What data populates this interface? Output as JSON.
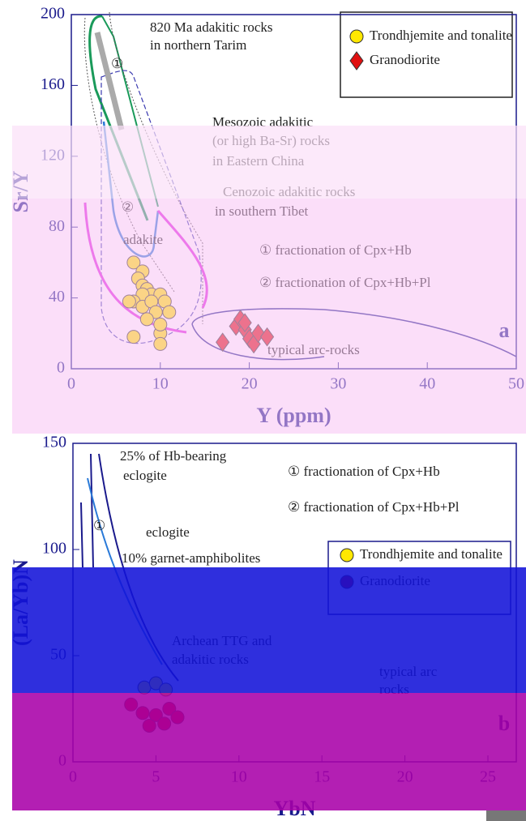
{
  "chart_data": [
    {
      "type": "scatter",
      "panel_label": "a",
      "x_label": "Y (ppm)",
      "y_label": "Sr/Y",
      "xlim": [
        0,
        50
      ],
      "ylim": [
        0,
        200
      ],
      "xticks": [
        0,
        10,
        20,
        30,
        40,
        50
      ],
      "yticks": [
        0,
        40,
        80,
        120,
        160,
        200
      ],
      "legend_position": "top-right",
      "series": [
        {
          "name": "Trondhjemite and tonalite",
          "color": "#ffe800",
          "marker": "circle",
          "x": [
            7,
            8,
            7.5,
            8,
            8.5,
            9,
            8,
            7,
            10,
            8,
            9,
            9.5,
            10.5,
            11,
            8.5,
            7,
            10,
            10,
            6.5,
            10
          ],
          "y": [
            60,
            55,
            51,
            47,
            45,
            42,
            42,
            38,
            42,
            35,
            38,
            32,
            38,
            32,
            28,
            18,
            20,
            14,
            38,
            25
          ]
        },
        {
          "name": "Granodiorite",
          "color": "#e01010",
          "marker": "diamond",
          "x": [
            17,
            18.5,
            19,
            19.5,
            20,
            20.5,
            21,
            22,
            19.5
          ],
          "y": [
            15,
            24,
            28,
            22,
            17,
            14,
            20,
            18,
            26
          ]
        }
      ],
      "annotations": [
        "820 Ma adakitic rocks",
        "in northern Tarim",
        "Mesozoic adakitic",
        "(or high Ba-Sr) rocks",
        "in Eastern China",
        "Cenozoic adakitic rocks",
        "in southern Tibet",
        "adakite",
        "① fractionation of Cpx+Hb",
        "② fractionation of Cpx+Hb+Pl",
        "typical arc-rocks",
        "①",
        "②"
      ]
    },
    {
      "type": "scatter",
      "panel_label": "b",
      "x_label": "YbN",
      "y_label": "(La/Yb)N",
      "xlim": [
        0,
        25
      ],
      "ylim": [
        0,
        150
      ],
      "xticks": [
        0,
        5,
        10,
        15,
        20,
        25
      ],
      "yticks": [
        0,
        50,
        100,
        150
      ],
      "legend_position": "top-right",
      "series": [
        {
          "name": "Trondhjemite and tonalite",
          "color": "#ffe800",
          "marker": "circle",
          "x": [
            4.3,
            5,
            5.6
          ],
          "y": [
            35,
            37,
            34
          ]
        },
        {
          "name": "Granodiorite",
          "color": "#c00000",
          "marker": "circle",
          "x": [
            3.5,
            4.2,
            5,
            5.8,
            6.3,
            4.6,
            5.5
          ],
          "y": [
            27,
            23,
            22,
            25,
            21,
            17,
            18
          ]
        }
      ],
      "annotations": [
        "25% of Hb-bearing",
        "eclogite",
        "① fractionation of Cpx+Hb",
        "② fractionation of Cpx+Hb+Pl",
        "eclogite",
        "10% garnet-amphibolites",
        "Archean TTG and",
        "adakitic rocks",
        "typical arc",
        "rocks",
        "①"
      ]
    }
  ]
}
